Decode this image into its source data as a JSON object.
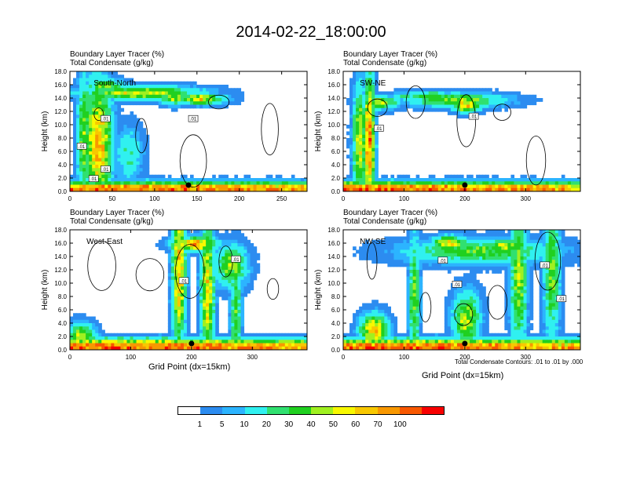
{
  "title": "2014-02-22_18:00:00",
  "colorbar": {
    "labels": [
      "1",
      "5",
      "10",
      "20",
      "30",
      "40",
      "50",
      "60",
      "70",
      "100"
    ],
    "colors": [
      "#ffffff",
      "#2c8cf0",
      "#2cb4ff",
      "#30f0f0",
      "#30e070",
      "#20d020",
      "#a0f020",
      "#f8f800",
      "#f8c800",
      "#f89800",
      "#f85800",
      "#f80000"
    ]
  },
  "chart_data": [
    {
      "type": "heatmap",
      "panel_label": "South-North",
      "titles": [
        "Boundary Layer Tracer   (%)",
        "Total Condensate   (g/kg)"
      ],
      "ylabel": "Height (km)",
      "xlabel": "",
      "xlim": [
        0,
        280
      ],
      "ylim": [
        0,
        18
      ],
      "xticks": [
        "0",
        "50",
        "100",
        "150",
        "200",
        "250"
      ],
      "yticks": [
        "0.0",
        "2.0",
        "4.0",
        "6.0",
        "8.0",
        "10.0",
        "12.0",
        "14.0",
        "16.0",
        "18.0"
      ],
      "contour_labels": [
        ".01",
        ".01",
        ".01",
        ".01",
        ".01"
      ],
      "marker_x": 140
    },
    {
      "type": "heatmap",
      "panel_label": "SW-NE",
      "titles": [
        "Boundary Layer Tracer   (%)",
        "Total Condensate   (g/kg)"
      ],
      "ylabel": "Height (km)",
      "xlabel": "",
      "xlim": [
        0,
        390
      ],
      "ylim": [
        0,
        18
      ],
      "xticks": [
        "0",
        "100",
        "200",
        "300"
      ],
      "yticks": [
        "0.0",
        "2.0",
        "4.0",
        "6.0",
        "8.0",
        "10.0",
        "12.0",
        "14.0",
        "16.0",
        "18.0"
      ],
      "contour_labels": [
        ".01",
        ".01"
      ],
      "marker_x": 200
    },
    {
      "type": "heatmap",
      "panel_label": "West-East",
      "titles": [
        "Boundary Layer Tracer   (%)",
        "Total Condensate   (g/kg)"
      ],
      "ylabel": "Height (km)",
      "xlabel": "Grid Point (dx=15km)",
      "xlim": [
        0,
        390
      ],
      "ylim": [
        0,
        18
      ],
      "xticks": [
        "0",
        "100",
        "200",
        "300"
      ],
      "yticks": [
        "0.0",
        "2.0",
        "4.0",
        "6.0",
        "8.0",
        "10.0",
        "12.0",
        "14.0",
        "16.0",
        "18.0"
      ],
      "contour_labels": [
        ".01",
        ".01"
      ],
      "marker_x": 200
    },
    {
      "type": "heatmap",
      "panel_label": "NW-SE",
      "titles": [
        "Boundary Layer Tracer   (%)",
        "Total Condensate   (g/kg)"
      ],
      "ylabel": "Height (km)",
      "xlabel": "Grid Point (dx=15km)",
      "note": "Total Condensate Contours: .01 to .01 by .000",
      "xlim": [
        0,
        390
      ],
      "ylim": [
        0,
        18
      ],
      "xticks": [
        "0",
        "100",
        "200",
        "300"
      ],
      "yticks": [
        "0.0",
        "2.0",
        "4.0",
        "6.0",
        "8.0",
        "10.0",
        "12.0",
        "14.0",
        "16.0",
        "18.0"
      ],
      "contour_labels": [
        ".01",
        ".01",
        ".01",
        ".01"
      ],
      "marker_x": 200
    }
  ]
}
